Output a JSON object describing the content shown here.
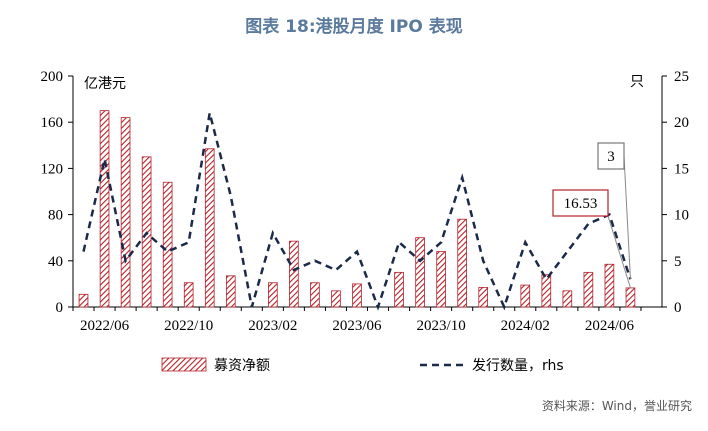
{
  "title": "图表 18:港股月度 IPO 表现",
  "source": "资料来源：Wind，誉业研究",
  "colors": {
    "bar": "#b5222a",
    "line": "#1c2a4a",
    "title": "#5b7a9c",
    "ann_box_red": "#b5222a",
    "ann_box_gray": "#777777"
  },
  "chart_data": {
    "type": "bar",
    "title": "图表 18:港股月度 IPO 表现",
    "x": [
      "2022/05",
      "2022/06",
      "2022/07",
      "2022/08",
      "2022/09",
      "2022/10",
      "2022/11",
      "2022/12",
      "2023/01",
      "2023/02",
      "2023/03",
      "2023/04",
      "2023/05",
      "2023/06",
      "2023/07",
      "2023/08",
      "2023/09",
      "2023/10",
      "2023/11",
      "2023/12",
      "2024/01",
      "2024/02",
      "2024/03",
      "2024/04",
      "2024/05",
      "2024/06",
      "2024/07",
      "2024/08"
    ],
    "xticks": [
      "2022/06",
      "2022/10",
      "2023/02",
      "2023/06",
      "2023/10",
      "2024/02",
      "2024/06"
    ],
    "left_axis": {
      "label": "亿港元",
      "ylim": [
        0,
        200
      ],
      "ticks": [
        "0",
        "40",
        "80",
        "120",
        "160",
        "200"
      ]
    },
    "right_axis": {
      "label": "只",
      "ylim": [
        0,
        25
      ],
      "ticks": [
        "0",
        "5",
        "10",
        "15",
        "20",
        "25"
      ]
    },
    "series": [
      {
        "name": "募资净额",
        "type": "bar",
        "axis": "left",
        "values": [
          11,
          170,
          164,
          130,
          108,
          21,
          137,
          27,
          0,
          21,
          57,
          21,
          14,
          20,
          0,
          30,
          60,
          48,
          76,
          17,
          0,
          19,
          28,
          14,
          30,
          37,
          16.53,
          null
        ]
      },
      {
        "name": "发行数量，rhs",
        "type": "line",
        "axis": "right",
        "style": "dashed",
        "values": [
          6,
          16,
          5,
          8,
          6,
          7,
          21,
          12,
          0,
          8,
          4,
          5,
          4,
          6,
          0,
          7,
          5,
          7,
          14,
          5,
          0,
          7,
          3,
          6,
          9,
          10,
          3,
          null
        ]
      }
    ],
    "annotations": [
      {
        "text": "3",
        "series": "发行数量，rhs"
      },
      {
        "text": "16.53",
        "series": "募资净额"
      }
    ],
    "legend": "bottom",
    "grid": false
  }
}
